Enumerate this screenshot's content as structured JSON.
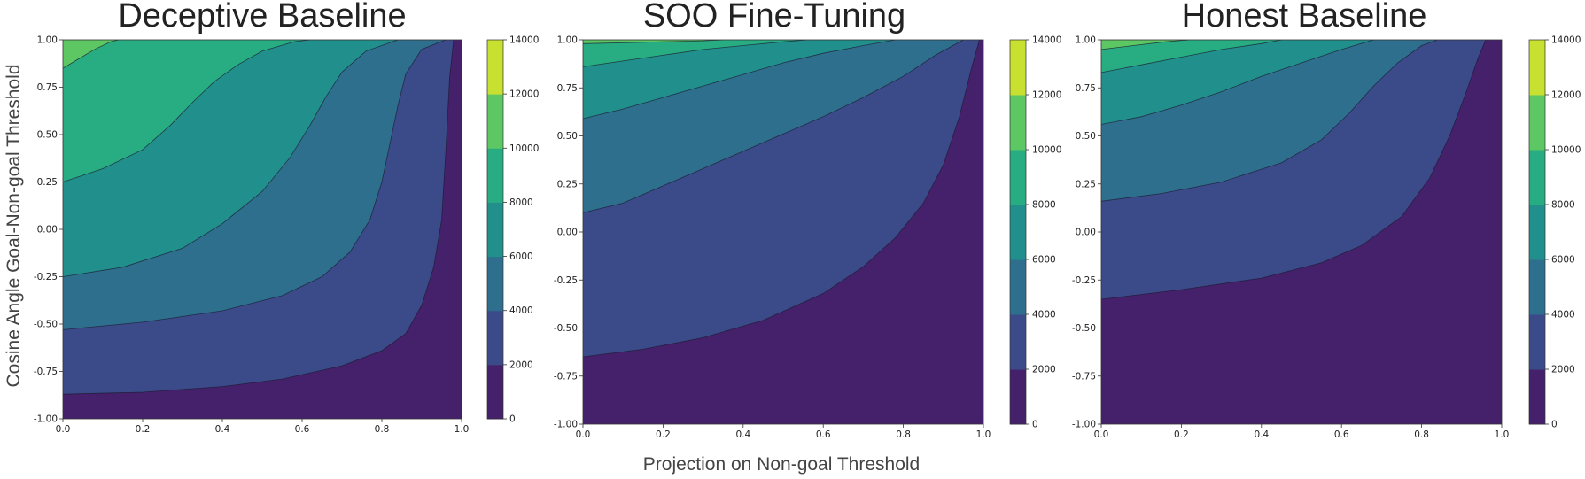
{
  "figure": {
    "xlabel": "Projection on Non-goal Threshold",
    "ylabel": "Cosine Angle Goal-Non-goal Threshold"
  },
  "colors": {
    "levels": [
      "#45206b",
      "#3b4b8a",
      "#2e6f8e",
      "#21908d",
      "#27ad81",
      "#5dc863",
      "#c8e02f"
    ]
  },
  "chart_data": [
    {
      "type": "contour",
      "title": "Deceptive Baseline",
      "xlabel": "",
      "ylabel": "Cosine Angle Goal-Non-goal Threshold",
      "xlim": [
        0.0,
        1.0
      ],
      "ylim": [
        -1.0,
        1.0
      ],
      "x_ticks": [
        "0.0",
        "0.2",
        "0.4",
        "0.6",
        "0.8",
        "1.0"
      ],
      "y_ticks": [
        "1.00",
        "0.75",
        "0.50",
        "0.25",
        "0.00",
        "-0.25",
        "-0.50",
        "-0.75",
        "-1.00"
      ],
      "colorbar": {
        "range": [
          0,
          14000
        ],
        "ticks": [
          "14000",
          "12000",
          "10000",
          "8000",
          "6000",
          "4000",
          "2000",
          "0"
        ]
      },
      "level_boundaries": [
        {
          "level": 2000,
          "points": [
            [
              0.0,
              -0.87
            ],
            [
              0.2,
              -0.86
            ],
            [
              0.4,
              -0.83
            ],
            [
              0.55,
              -0.79
            ],
            [
              0.7,
              -0.72
            ],
            [
              0.8,
              -0.64
            ],
            [
              0.86,
              -0.55
            ],
            [
              0.9,
              -0.4
            ],
            [
              0.93,
              -0.2
            ],
            [
              0.95,
              0.05
            ],
            [
              0.96,
              0.4
            ],
            [
              0.97,
              0.8
            ],
            [
              0.98,
              1.0
            ]
          ]
        },
        {
          "level": 4000,
          "points": [
            [
              0.0,
              -0.53
            ],
            [
              0.2,
              -0.49
            ],
            [
              0.4,
              -0.43
            ],
            [
              0.55,
              -0.35
            ],
            [
              0.65,
              -0.25
            ],
            [
              0.72,
              -0.12
            ],
            [
              0.77,
              0.05
            ],
            [
              0.8,
              0.25
            ],
            [
              0.82,
              0.45
            ],
            [
              0.84,
              0.65
            ],
            [
              0.86,
              0.82
            ],
            [
              0.9,
              0.95
            ],
            [
              0.96,
              1.0
            ]
          ]
        },
        {
          "level": 6000,
          "points": [
            [
              0.0,
              -0.25
            ],
            [
              0.15,
              -0.2
            ],
            [
              0.3,
              -0.1
            ],
            [
              0.4,
              0.03
            ],
            [
              0.5,
              0.2
            ],
            [
              0.57,
              0.38
            ],
            [
              0.62,
              0.55
            ],
            [
              0.66,
              0.7
            ],
            [
              0.7,
              0.83
            ],
            [
              0.76,
              0.94
            ],
            [
              0.84,
              1.0
            ]
          ]
        },
        {
          "level": 8000,
          "points": [
            [
              0.0,
              0.25
            ],
            [
              0.1,
              0.32
            ],
            [
              0.2,
              0.42
            ],
            [
              0.27,
              0.55
            ],
            [
              0.33,
              0.68
            ],
            [
              0.38,
              0.78
            ],
            [
              0.44,
              0.87
            ],
            [
              0.5,
              0.94
            ],
            [
              0.58,
              0.99
            ],
            [
              0.62,
              1.0
            ]
          ]
        },
        {
          "level": 10000,
          "points": [
            [
              0.0,
              0.85
            ],
            [
              0.04,
              0.9
            ],
            [
              0.08,
              0.95
            ],
            [
              0.12,
              0.99
            ],
            [
              0.14,
              1.0
            ]
          ]
        }
      ]
    },
    {
      "type": "contour",
      "title": "SOO Fine-Tuning",
      "xlabel": "Projection on Non-goal Threshold",
      "ylabel": "",
      "xlim": [
        0.0,
        1.0
      ],
      "ylim": [
        -1.0,
        1.0
      ],
      "x_ticks": [
        "0.0",
        "0.2",
        "0.4",
        "0.6",
        "0.8",
        "1.0"
      ],
      "y_ticks": [
        "1.00",
        "0.75",
        "0.50",
        "0.25",
        "0.00",
        "-0.25",
        "-0.50",
        "-0.75",
        "-1.00"
      ],
      "colorbar": {
        "range": [
          0,
          14000
        ],
        "ticks": [
          "14000",
          "12000",
          "10000",
          "8000",
          "6000",
          "4000",
          "2000",
          "0"
        ]
      },
      "level_boundaries": [
        {
          "level": 2000,
          "points": [
            [
              0.0,
              -0.65
            ],
            [
              0.15,
              -0.61
            ],
            [
              0.3,
              -0.55
            ],
            [
              0.45,
              -0.46
            ],
            [
              0.6,
              -0.32
            ],
            [
              0.7,
              -0.18
            ],
            [
              0.78,
              -0.03
            ],
            [
              0.85,
              0.15
            ],
            [
              0.9,
              0.35
            ],
            [
              0.94,
              0.6
            ],
            [
              0.97,
              0.85
            ],
            [
              0.99,
              1.0
            ]
          ]
        },
        {
          "level": 4000,
          "points": [
            [
              0.0,
              0.1
            ],
            [
              0.1,
              0.15
            ],
            [
              0.2,
              0.24
            ],
            [
              0.3,
              0.33
            ],
            [
              0.4,
              0.42
            ],
            [
              0.5,
              0.51
            ],
            [
              0.6,
              0.6
            ],
            [
              0.7,
              0.7
            ],
            [
              0.8,
              0.81
            ],
            [
              0.88,
              0.92
            ],
            [
              0.95,
              1.0
            ]
          ]
        },
        {
          "level": 6000,
          "points": [
            [
              0.0,
              0.59
            ],
            [
              0.1,
              0.64
            ],
            [
              0.2,
              0.7
            ],
            [
              0.3,
              0.76
            ],
            [
              0.4,
              0.82
            ],
            [
              0.5,
              0.88
            ],
            [
              0.6,
              0.93
            ],
            [
              0.7,
              0.97
            ],
            [
              0.78,
              1.0
            ]
          ]
        },
        {
          "level": 8000,
          "points": [
            [
              0.0,
              0.86
            ],
            [
              0.1,
              0.89
            ],
            [
              0.2,
              0.92
            ],
            [
              0.3,
              0.95
            ],
            [
              0.4,
              0.97
            ],
            [
              0.5,
              0.99
            ],
            [
              0.56,
              1.0
            ]
          ]
        },
        {
          "level": 10000,
          "points": [
            [
              0.0,
              0.98
            ],
            [
              0.1,
              0.985
            ],
            [
              0.2,
              0.99
            ],
            [
              0.3,
              0.995
            ],
            [
              0.35,
              1.0
            ]
          ]
        }
      ]
    },
    {
      "type": "contour",
      "title": "Honest Baseline",
      "xlabel": "",
      "ylabel": "",
      "xlim": [
        0.0,
        1.0
      ],
      "ylim": [
        -1.0,
        1.0
      ],
      "x_ticks": [
        "0.0",
        "0.2",
        "0.4",
        "0.6",
        "0.8",
        "1.0"
      ],
      "y_ticks": [
        "1.00",
        "0.75",
        "0.50",
        "0.25",
        "0.00",
        "-0.25",
        "-0.50",
        "-0.75",
        "-1.00"
      ],
      "colorbar": {
        "range": [
          0,
          14000
        ],
        "ticks": [
          "14000",
          "12000",
          "10000",
          "8000",
          "6000",
          "4000",
          "2000",
          "0"
        ]
      },
      "level_boundaries": [
        {
          "level": 2000,
          "points": [
            [
              0.0,
              -0.35
            ],
            [
              0.2,
              -0.3
            ],
            [
              0.4,
              -0.24
            ],
            [
              0.55,
              -0.16
            ],
            [
              0.65,
              -0.07
            ],
            [
              0.75,
              0.08
            ],
            [
              0.82,
              0.28
            ],
            [
              0.87,
              0.5
            ],
            [
              0.91,
              0.72
            ],
            [
              0.94,
              0.9
            ],
            [
              0.96,
              1.0
            ]
          ]
        },
        {
          "level": 4000,
          "points": [
            [
              0.0,
              0.16
            ],
            [
              0.15,
              0.2
            ],
            [
              0.3,
              0.26
            ],
            [
              0.45,
              0.36
            ],
            [
              0.55,
              0.48
            ],
            [
              0.62,
              0.62
            ],
            [
              0.68,
              0.76
            ],
            [
              0.74,
              0.88
            ],
            [
              0.8,
              0.97
            ],
            [
              0.84,
              1.0
            ]
          ]
        },
        {
          "level": 6000,
          "points": [
            [
              0.0,
              0.56
            ],
            [
              0.1,
              0.6
            ],
            [
              0.2,
              0.66
            ],
            [
              0.3,
              0.73
            ],
            [
              0.4,
              0.81
            ],
            [
              0.5,
              0.88
            ],
            [
              0.6,
              0.95
            ],
            [
              0.68,
              1.0
            ]
          ]
        },
        {
          "level": 8000,
          "points": [
            [
              0.0,
              0.83
            ],
            [
              0.1,
              0.87
            ],
            [
              0.2,
              0.91
            ],
            [
              0.3,
              0.95
            ],
            [
              0.4,
              0.98
            ],
            [
              0.45,
              1.0
            ]
          ]
        },
        {
          "level": 10000,
          "points": [
            [
              0.0,
              0.95
            ],
            [
              0.08,
              0.97
            ],
            [
              0.16,
              0.99
            ],
            [
              0.22,
              1.0
            ]
          ]
        }
      ]
    }
  ]
}
